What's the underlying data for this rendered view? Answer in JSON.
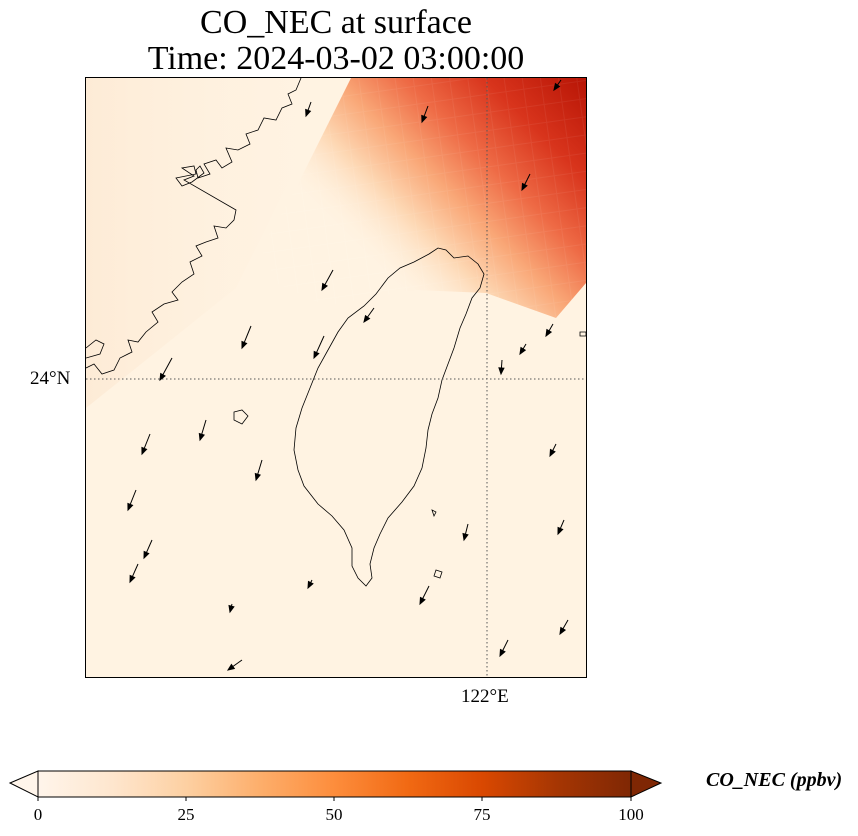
{
  "title_line1": "CO_NEC at surface",
  "title_line2": "Time: 2024-03-02 03:00:00",
  "lat_tick": "24°N",
  "lon_tick": "122°E",
  "colorbar": {
    "label": "CO_NEC (ppbv)",
    "ticks": [
      "0",
      "25",
      "50",
      "75",
      "100"
    ],
    "min": 0,
    "max": 100,
    "colormap": [
      "#fff5eb",
      "#fee6ce",
      "#fdd0a2",
      "#fdae6b",
      "#fd8d3c",
      "#f16913",
      "#d94801",
      "#a63603",
      "#7f2704"
    ],
    "extend": "both"
  },
  "map": {
    "land_outline_color": "#000000",
    "gridline_style": "dotted",
    "field": "CO_NEC",
    "level": "surface",
    "high_concentration_region": "northeast",
    "wind_direction": "southward"
  }
}
